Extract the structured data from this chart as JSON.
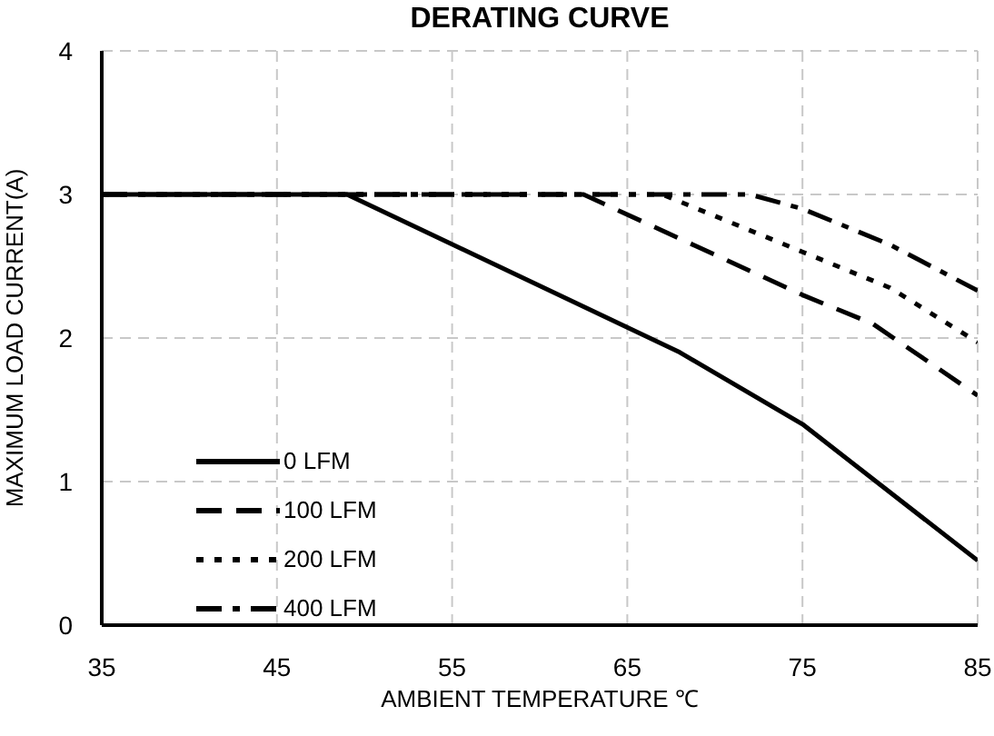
{
  "chart_data": {
    "type": "line",
    "title": "DERATING CURVE",
    "xlabel": "AMBIENT TEMPERATURE ℃",
    "ylabel": "MAXIMUM LOAD CURRENT(A)",
    "series": [
      {
        "name": "0 LFM",
        "color": "#000000",
        "line_style": "solid",
        "x": [
          35,
          49,
          68,
          75,
          85
        ],
        "values": [
          3,
          3,
          1.9,
          1.4,
          0.45
        ]
      },
      {
        "name": "100 LFM",
        "color": "#000000",
        "line_style": "dashed",
        "x": [
          35,
          62.5,
          75,
          79,
          85
        ],
        "values": [
          3,
          3,
          2.3,
          2.1,
          1.6
        ]
      },
      {
        "name": "200 LFM",
        "color": "#000000",
        "line_style": "dotted",
        "x": [
          35,
          67,
          75,
          80,
          85
        ],
        "values": [
          3,
          3,
          2.6,
          2.35,
          1.97
        ]
      },
      {
        "name": "400 LFM",
        "color": "#000000",
        "line_style": "dashdot",
        "x": [
          35,
          72,
          75,
          80,
          85
        ],
        "values": [
          3,
          3,
          2.9,
          2.65,
          2.33
        ]
      }
    ],
    "xlim": [
      35,
      85
    ],
    "xticks": [
      35,
      45,
      55,
      65,
      75,
      85
    ],
    "ylim": [
      0,
      4
    ],
    "yticks": [
      0,
      1,
      2,
      3,
      4
    ],
    "grid": true,
    "legend": "bottom left",
    "marker": "none"
  }
}
